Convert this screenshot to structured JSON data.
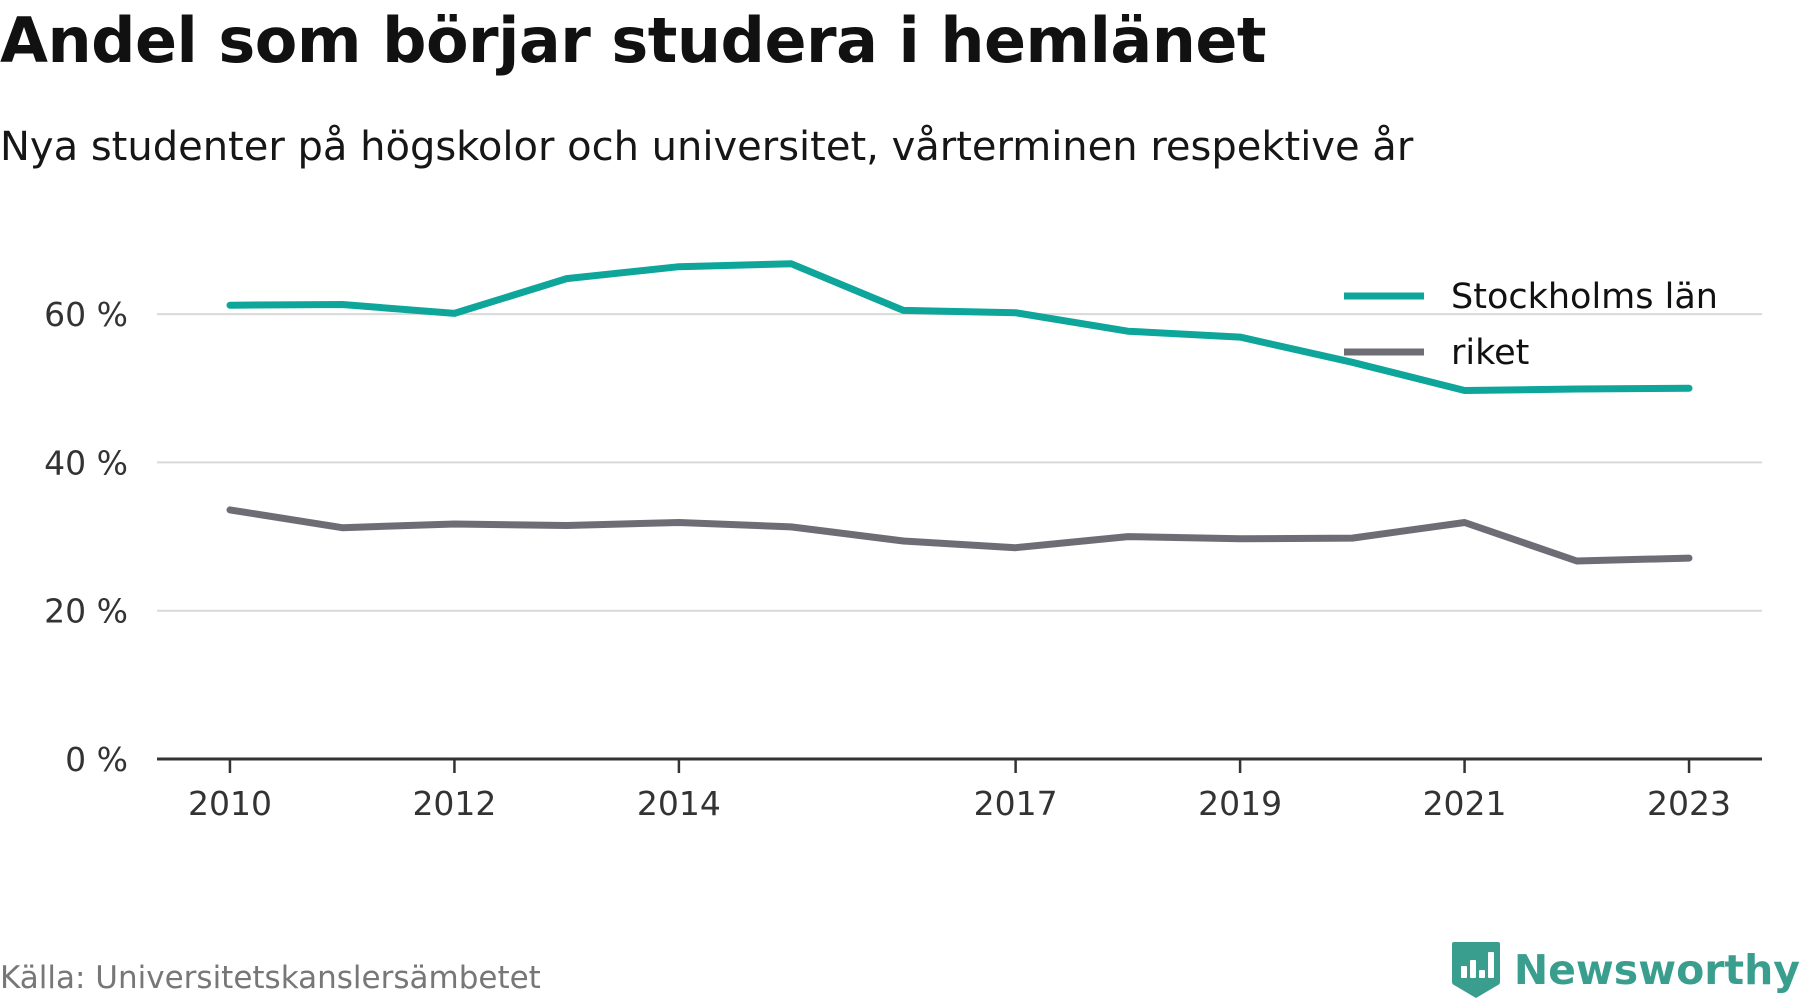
{
  "header": {
    "title": "Andel som börjar studera i hemlänet",
    "subtitle": "Nya studenter på högskolor och universitet, vårterminen respektive år"
  },
  "chart_data": {
    "type": "line",
    "x": [
      2010,
      2011,
      2012,
      2013,
      2014,
      2015,
      2016,
      2017,
      2018,
      2019,
      2020,
      2021,
      2022,
      2023
    ],
    "x_tick_labels": [
      "2010",
      "2012",
      "2014",
      "2017",
      "2019",
      "2021",
      "2023"
    ],
    "y_tick_labels": [
      "0 %",
      "20 %",
      "40 %",
      "60 %"
    ],
    "y_ticks": [
      0,
      20,
      40,
      60
    ],
    "ylim": [
      0,
      70
    ],
    "xlim": [
      2009.35,
      2023.65
    ],
    "grid": true,
    "legend_position": "top-right",
    "series": [
      {
        "name": "Stockholms län",
        "color": "#0ea59a",
        "values": [
          61.2,
          61.3,
          60.1,
          64.8,
          66.4,
          66.8,
          60.5,
          60.2,
          57.7,
          56.9,
          53.5,
          49.7,
          49.9,
          50.0
        ]
      },
      {
        "name": "riket",
        "color": "#6e6d75",
        "values": [
          33.6,
          31.2,
          31.7,
          31.5,
          31.9,
          31.3,
          29.4,
          28.5,
          30.0,
          29.7,
          29.8,
          31.9,
          26.7,
          27.1
        ]
      }
    ]
  },
  "footer": {
    "source": "Källa: Universitetskanslersämbetet",
    "brand": "Newsworthy",
    "brand_color": "#3a9e8f"
  }
}
